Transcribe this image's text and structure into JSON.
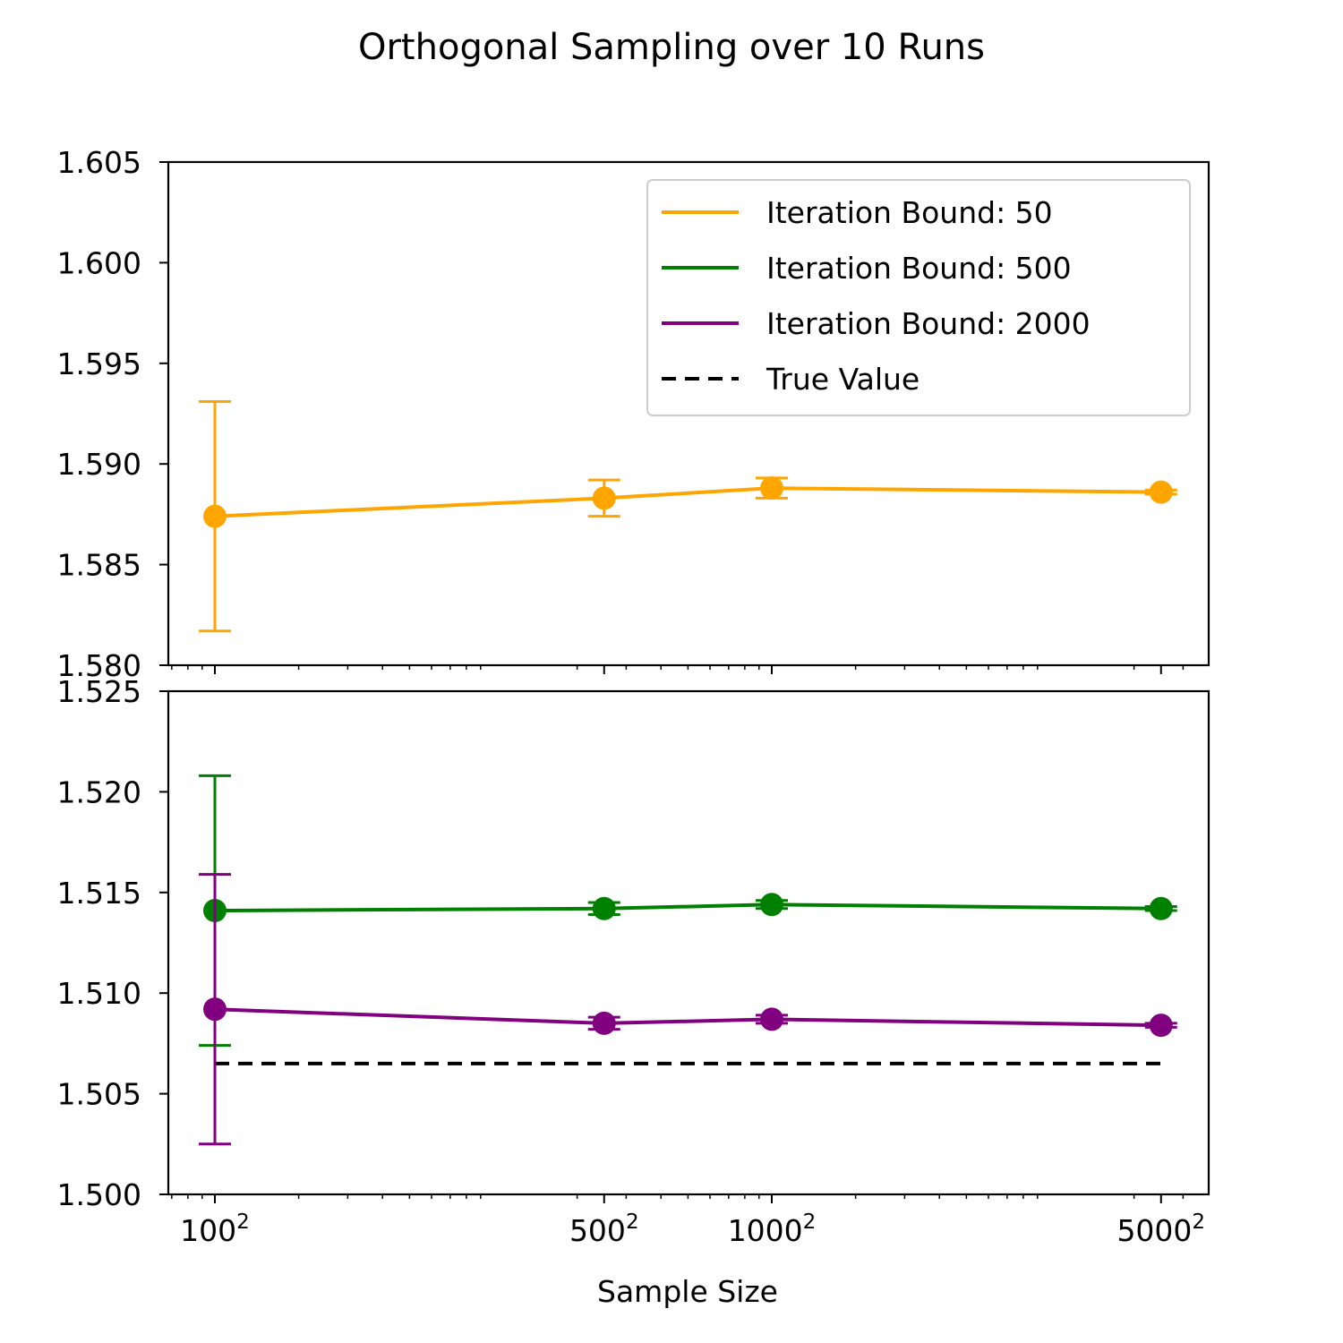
{
  "title": "Orthogonal Sampling over 10 Runs",
  "chart_data": {
    "type": "line",
    "title": "Orthogonal Sampling over 10 Runs",
    "xlabel": "Sample Size",
    "xscale": "log",
    "x": [
      10000,
      250000,
      1000000,
      25000000
    ],
    "x_tick_labels": [
      {
        "base": "100",
        "sup": "2"
      },
      {
        "base": "500",
        "sup": "2"
      },
      {
        "base": "1000",
        "sup": "2"
      },
      {
        "base": "5000",
        "sup": "2"
      }
    ],
    "legend_position": "top-right",
    "grid": false,
    "legend": [
      {
        "label": "Iteration Bound: 50",
        "color": "#FFA500",
        "style": "solid"
      },
      {
        "label": "Iteration Bound: 500",
        "color": "#008000",
        "style": "solid"
      },
      {
        "label": "Iteration Bound: 2000",
        "color": "#800080",
        "style": "solid"
      },
      {
        "label": "True Value",
        "color": "#000000",
        "style": "dashed"
      }
    ],
    "panels": [
      {
        "ylim": [
          1.58,
          1.605
        ],
        "y_ticks": [
          "1.580",
          "1.585",
          "1.590",
          "1.595",
          "1.600",
          "1.605"
        ],
        "series": [
          {
            "color": "#FFA500",
            "y": [
              1.5874,
              1.5883,
              1.5888,
              1.5886
            ],
            "err": [
              0.0057,
              0.0009,
              0.0005,
              0.0001
            ]
          }
        ]
      },
      {
        "ylim": [
          1.5,
          1.525
        ],
        "y_ticks": [
          "1.500",
          "1.505",
          "1.510",
          "1.515",
          "1.520",
          "1.525"
        ],
        "series": [
          {
            "color": "#008000",
            "y": [
              1.5141,
              1.5142,
              1.5144,
              1.5142
            ],
            "err": [
              0.0067,
              0.0003,
              0.0002,
              0.0001
            ]
          },
          {
            "color": "#800080",
            "y": [
              1.5092,
              1.5085,
              1.5087,
              1.5084
            ],
            "err": [
              0.0067,
              0.0003,
              0.0002,
              0.0001
            ]
          }
        ],
        "true_value": 1.5065
      }
    ]
  }
}
